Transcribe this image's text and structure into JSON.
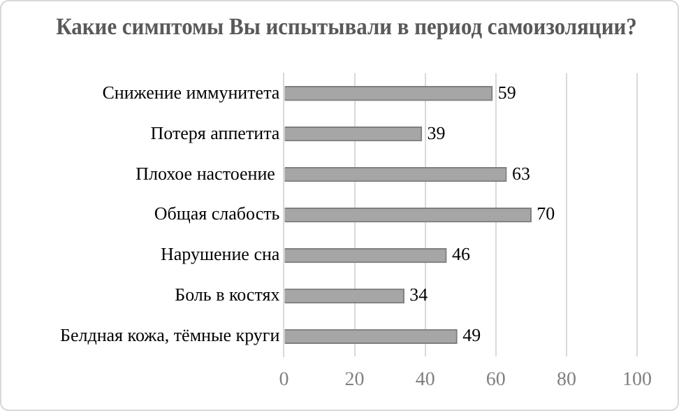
{
  "chart_data": {
    "type": "bar",
    "orientation": "horizontal",
    "title": "Какие симптомы Вы испытывали в период самоизоляции?",
    "categories": [
      "Снижение иммунитета",
      "Потеря аппетита",
      "Плохое настоение ",
      "Общая слабость",
      "Нарушение сна",
      "Боль в костях",
      "Белдная кожа, тёмные круги"
    ],
    "values": [
      59,
      39,
      63,
      70,
      46,
      34,
      49
    ],
    "color": "#a6a6a6",
    "xlim": [
      0,
      100
    ],
    "xticks": [
      0,
      20,
      40,
      60,
      80,
      100
    ],
    "grid": "x",
    "data_labels": true,
    "legend": false
  }
}
